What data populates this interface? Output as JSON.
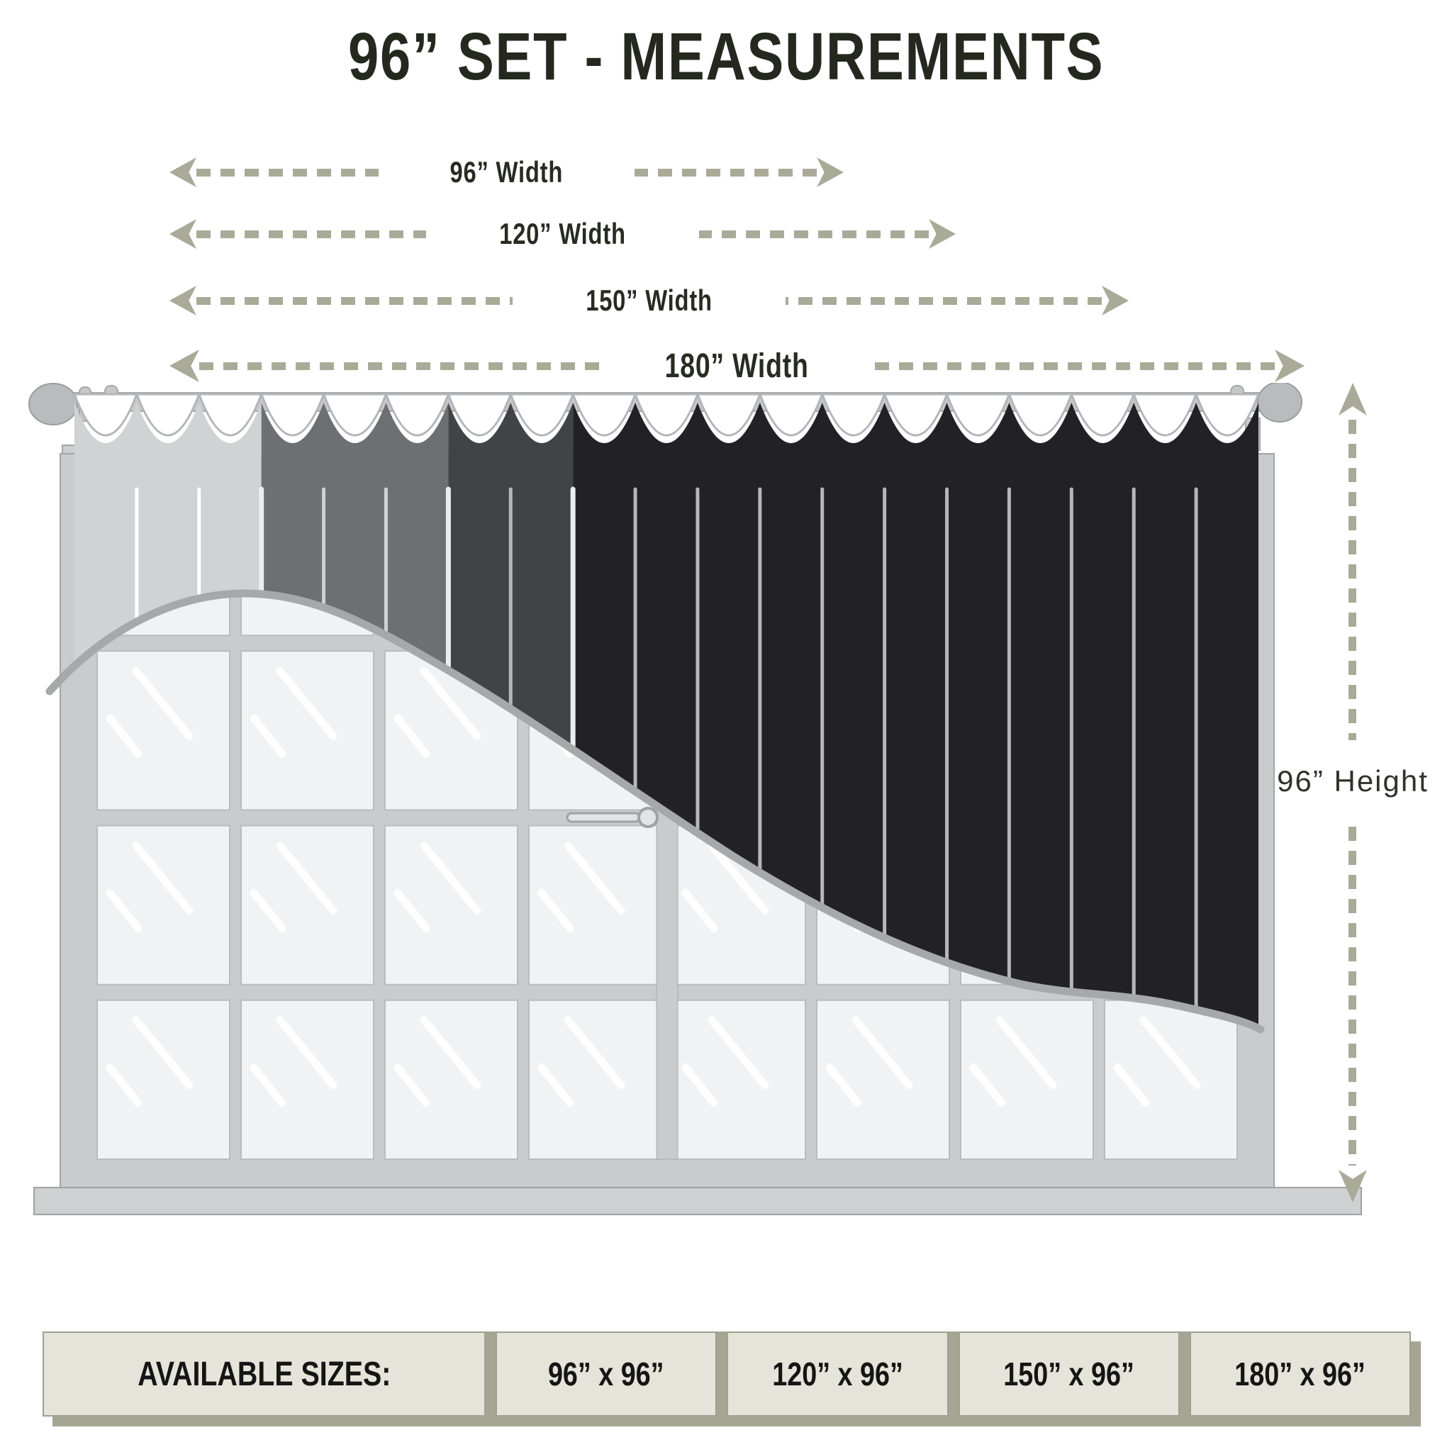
{
  "title": "96” SET - MEASUREMENTS",
  "width_arrows": [
    {
      "label": "96” Width"
    },
    {
      "label": "120” Width"
    },
    {
      "label": "150” Width"
    },
    {
      "label": "180” Width"
    }
  ],
  "height_arrow": {
    "label": "96” Height"
  },
  "sizes_table": {
    "header": "AVAILABLE SIZES:",
    "sizes": [
      "96” x  96”",
      "120” x 96”",
      "150” x 96”",
      "180” x 96”"
    ]
  },
  "colors": {
    "accent_dashes": "#a9aa98",
    "title_text": "#25281e",
    "table_cell_bg": "#e4e4da",
    "table_shadow": "#a4a593",
    "curtain_bands": [
      "#d0d2d4",
      "#6d6f72",
      "#414347",
      "#222126"
    ],
    "pleat_line_light": "#ffffff",
    "pleat_line_mid": "#cfd1d3",
    "pleat_line_dark": "#b5b7b9",
    "window_frame": "#c9cbcd",
    "window_frame_edge": "#a2a4a6",
    "glass": "#f1f2f4",
    "rod": "#c6c8ca",
    "finial": "#b9bbbd",
    "hem_line": "#a6a8aa"
  }
}
